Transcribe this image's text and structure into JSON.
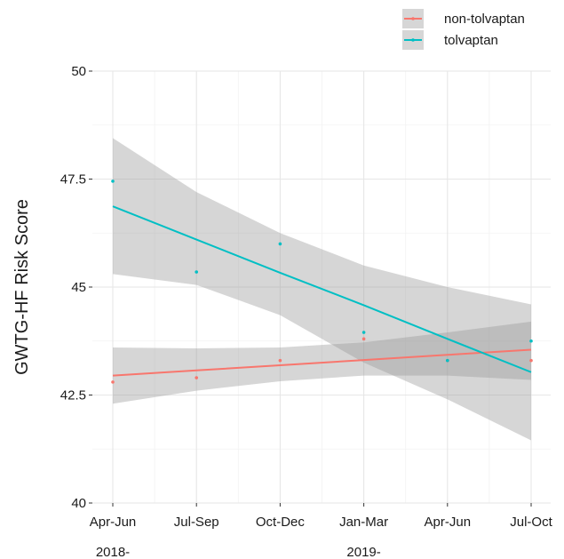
{
  "chart_data": {
    "type": "line",
    "ylabel": "GWTG-HF Risk Score",
    "xlabel": "",
    "categories": [
      "Apr-Jun",
      "Jul-Sep",
      "Oct-Dec",
      "Jan-Mar",
      "Apr-Jun",
      "Jul-Oct"
    ],
    "year_labels": [
      {
        "label": "2018-",
        "at_category": 0
      },
      {
        "label": "2019-",
        "at_category": 3
      }
    ],
    "ylim": [
      40,
      50
    ],
    "yticks": [
      40,
      42.5,
      45,
      47.5,
      50
    ],
    "ytick_labels": [
      "40",
      "42.5",
      "45",
      "47.5",
      "50"
    ],
    "grid": true,
    "legend_position": "top-right",
    "series": [
      {
        "name": "non-tolvaptan",
        "color": "#F8766D",
        "points": [
          42.8,
          42.9,
          43.3,
          43.8,
          43.3,
          43.3
        ],
        "fit": [
          42.95,
          43.07,
          43.19,
          43.31,
          43.43,
          43.55
        ],
        "ci_lower": [
          42.3,
          42.6,
          42.82,
          42.95,
          42.95,
          42.85
        ],
        "ci_upper": [
          43.6,
          43.58,
          43.6,
          43.72,
          43.95,
          44.2
        ]
      },
      {
        "name": "tolvaptan",
        "color": "#00BFC4",
        "points": [
          47.45,
          45.35,
          46.0,
          43.95,
          43.3,
          43.75
        ],
        "fit": [
          46.87,
          46.1,
          45.33,
          44.58,
          43.8,
          43.03
        ],
        "ci_lower": [
          45.3,
          45.05,
          44.35,
          43.25,
          42.4,
          41.45
        ],
        "ci_upper": [
          48.45,
          47.2,
          46.25,
          45.5,
          45.0,
          44.6
        ]
      }
    ],
    "ci_band_color": "#999999"
  }
}
